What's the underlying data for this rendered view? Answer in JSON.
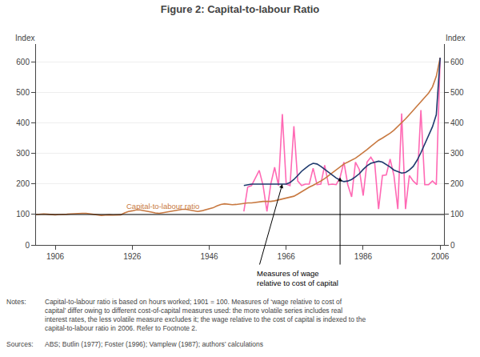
{
  "chart_data": {
    "type": "line",
    "title": "Figure 2: Capital-to-labour Ratio",
    "ylabel": "Index",
    "y2label": "Index",
    "xlim": [
      1901,
      2007
    ],
    "xticks": [
      1906,
      1926,
      1946,
      1966,
      1986,
      2006
    ],
    "ylim": [
      0,
      660
    ],
    "yticks": [
      0,
      100,
      200,
      300,
      400,
      500,
      600
    ],
    "y2lim": [
      0,
      660
    ],
    "y2ticks": [
      0,
      100,
      200,
      300,
      400,
      500,
      600
    ],
    "grid": true,
    "reference_line": 100,
    "series": [
      {
        "color": "#FF69B4",
        "x": [
          1955,
          1956,
          1957,
          1958,
          1959,
          1960,
          1961,
          1962,
          1963,
          1964,
          1965,
          1966,
          1967,
          1968,
          1969,
          1970,
          1971,
          1972,
          1973,
          1974,
          1975,
          1976,
          1977,
          1978,
          1979,
          1980,
          1981,
          1982,
          1983,
          1984,
          1985,
          1986,
          1987,
          1988,
          1989,
          1990,
          1991,
          1992,
          1993,
          1994,
          1995,
          1996,
          1997,
          1998,
          1999,
          2000,
          2001,
          2002,
          2003,
          2004,
          2005,
          2006
        ],
        "values": [
          110,
          190,
          195,
          220,
          245,
          195,
          110,
          200,
          255,
          195,
          430,
          200,
          195,
          390,
          210,
          195,
          200,
          200,
          252,
          198,
          200,
          262,
          198,
          200,
          198,
          222,
          272,
          198,
          158,
          272,
          248,
          162,
          272,
          288,
          268,
          118,
          228,
          230,
          282,
          228,
          118,
          432,
          118,
          228,
          210,
          198,
          443,
          198,
          198,
          210,
          198,
          615
        ]
      },
      {
        "color": "#C87941",
        "x": [
          1901,
          1902,
          1903,
          1904,
          1905,
          1906,
          1907,
          1908,
          1909,
          1910,
          1911,
          1912,
          1913,
          1914,
          1915,
          1916,
          1917,
          1918,
          1919,
          1920,
          1921,
          1922,
          1923,
          1924,
          1925,
          1926,
          1927,
          1928,
          1929,
          1930,
          1931,
          1932,
          1933,
          1934,
          1935,
          1936,
          1937,
          1938,
          1939,
          1940,
          1941,
          1942,
          1943,
          1944,
          1945,
          1946,
          1947,
          1948,
          1949,
          1950,
          1951,
          1952,
          1953,
          1954,
          1955,
          1956,
          1957,
          1958,
          1959,
          1960,
          1961,
          1962,
          1963,
          1964,
          1965,
          1966,
          1967,
          1968,
          1969,
          1970,
          1971,
          1972,
          1973,
          1974,
          1975,
          1976,
          1977,
          1978,
          1979,
          1980,
          1981,
          1982,
          1983,
          1984,
          1985,
          1986,
          1987,
          1988,
          1989,
          1990,
          1991,
          1992,
          1993,
          1994,
          1995,
          1996,
          1997,
          1998,
          1999,
          2000,
          2001,
          2002,
          2003,
          2004,
          2005,
          2006
        ],
        "values": [
          100,
          101,
          102,
          101,
          100,
          99,
          100,
          100,
          101,
          102,
          103,
          103,
          104,
          104,
          102,
          100,
          98,
          97,
          98,
          99,
          98,
          98,
          99,
          105,
          110,
          112,
          115,
          115,
          113,
          110,
          108,
          105,
          104,
          106,
          108,
          110,
          113,
          115,
          117,
          117,
          115,
          112,
          110,
          112,
          115,
          118,
          122,
          128,
          133,
          135,
          133,
          132,
          133,
          135,
          137,
          138,
          138,
          140,
          142,
          143,
          143,
          143,
          145,
          148,
          150,
          153,
          156,
          160,
          167,
          175,
          182,
          190,
          196,
          202,
          210,
          218,
          228,
          238,
          248,
          258,
          266,
          272,
          278,
          285,
          294,
          303,
          313,
          324,
          334,
          344,
          351,
          358,
          367,
          377,
          389,
          401,
          414,
          428,
          442,
          458,
          470,
          484,
          499,
          519,
          554,
          615
        ]
      },
      {
        "color": "#1F3A6E",
        "x": [
          1955,
          1956,
          1957,
          1958,
          1959,
          1960,
          1961,
          1962,
          1963,
          1964,
          1965,
          1966,
          1967,
          1968,
          1969,
          1970,
          1971,
          1972,
          1973,
          1974,
          1975,
          1976,
          1977,
          1978,
          1979,
          1980,
          1981,
          1982,
          1983,
          1984,
          1985,
          1986,
          1987,
          1988,
          1989,
          1990,
          1991,
          1992,
          1993,
          1994,
          1995,
          1996,
          1997,
          1998,
          1999,
          2000,
          2001,
          2002,
          2003,
          2004,
          2005,
          2006
        ],
        "values": [
          195,
          198,
          200,
          200,
          200,
          200,
          200,
          200,
          200,
          200,
          200,
          200,
          205,
          215,
          228,
          242,
          252,
          262,
          268,
          266,
          258,
          248,
          238,
          228,
          220,
          213,
          208,
          210,
          215,
          224,
          234,
          248,
          260,
          268,
          272,
          275,
          272,
          265,
          256,
          246,
          240,
          236,
          238,
          246,
          258,
          278,
          303,
          332,
          358,
          388,
          428,
          615
        ]
      }
    ],
    "annotations": [
      {
        "text": "Capital-to-labour ratio",
        "x": 1924,
        "y": 108,
        "color": "#C87941"
      },
      {
        "text": "Measures of wage\nrelative to cost of capital",
        "arrows": [
          {
            "x": 1965,
            "y": 200
          },
          {
            "x": 1980,
            "y": 222
          }
        ]
      }
    ],
    "notes_label": "Notes:",
    "notes": [
      "Capital-to-labour ratio is based on hours worked; 1901 = 100. Measures of ‘wage relative to cost of",
      "capital’ differ owing to different cost-of-capital measures used: the more volatile series includes real",
      "interest rates, the less volatile measure excludes it; the wage relative to the cost of capital is indexed to the",
      "capital-to-labour ratio in 2006. Refer to Footnote 2."
    ],
    "sources_label": "Sources:",
    "sources": "ABS; Butlin (1977); Foster (1996); Vamplew (1987); authors’ calculations"
  }
}
